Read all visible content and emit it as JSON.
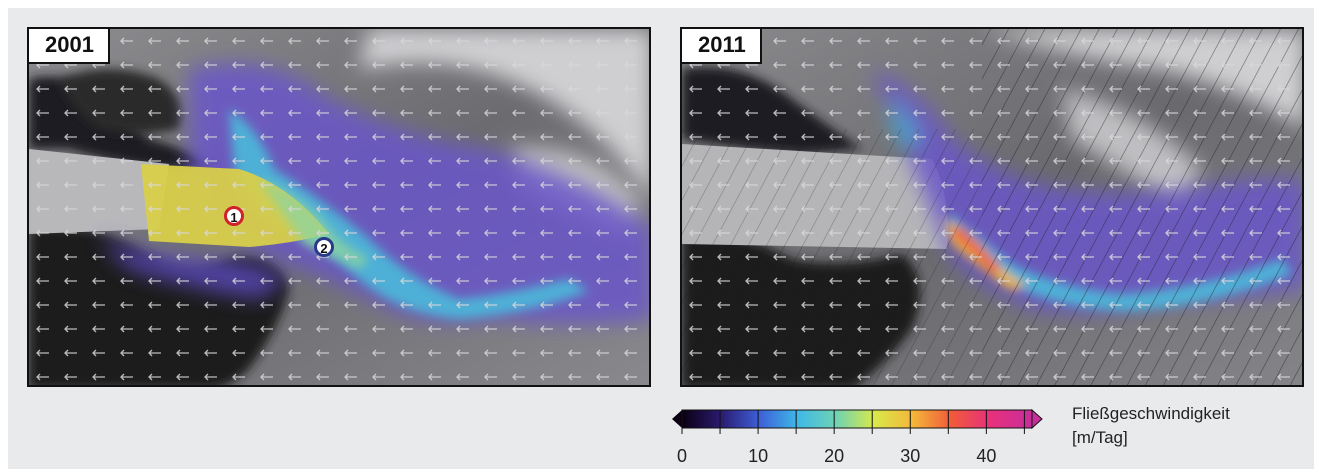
{
  "panels": [
    {
      "year": "2001",
      "markers": [
        "1",
        "2"
      ]
    },
    {
      "year": "2011"
    }
  ],
  "legend": {
    "title": "Fließgeschwindigkeit",
    "unit": "[m/Tag]",
    "min": 0,
    "max": 46,
    "ticks": [
      "0",
      "10",
      "20",
      "30",
      "40"
    ],
    "colors": [
      "#0a0012",
      "#2a1a6e",
      "#3d5fd8",
      "#3fb8e8",
      "#6fd3b4",
      "#d9e94a",
      "#f4b63a",
      "#f05a3a",
      "#e8307c",
      "#c72e9b"
    ]
  },
  "colors": {
    "marker1_border": "#d0202a",
    "marker2_border": "#2a3a88",
    "ice_fast": "#d8cf4a",
    "ice_mid": "#4ab9d9",
    "ice_slow": "#6a56c9"
  }
}
